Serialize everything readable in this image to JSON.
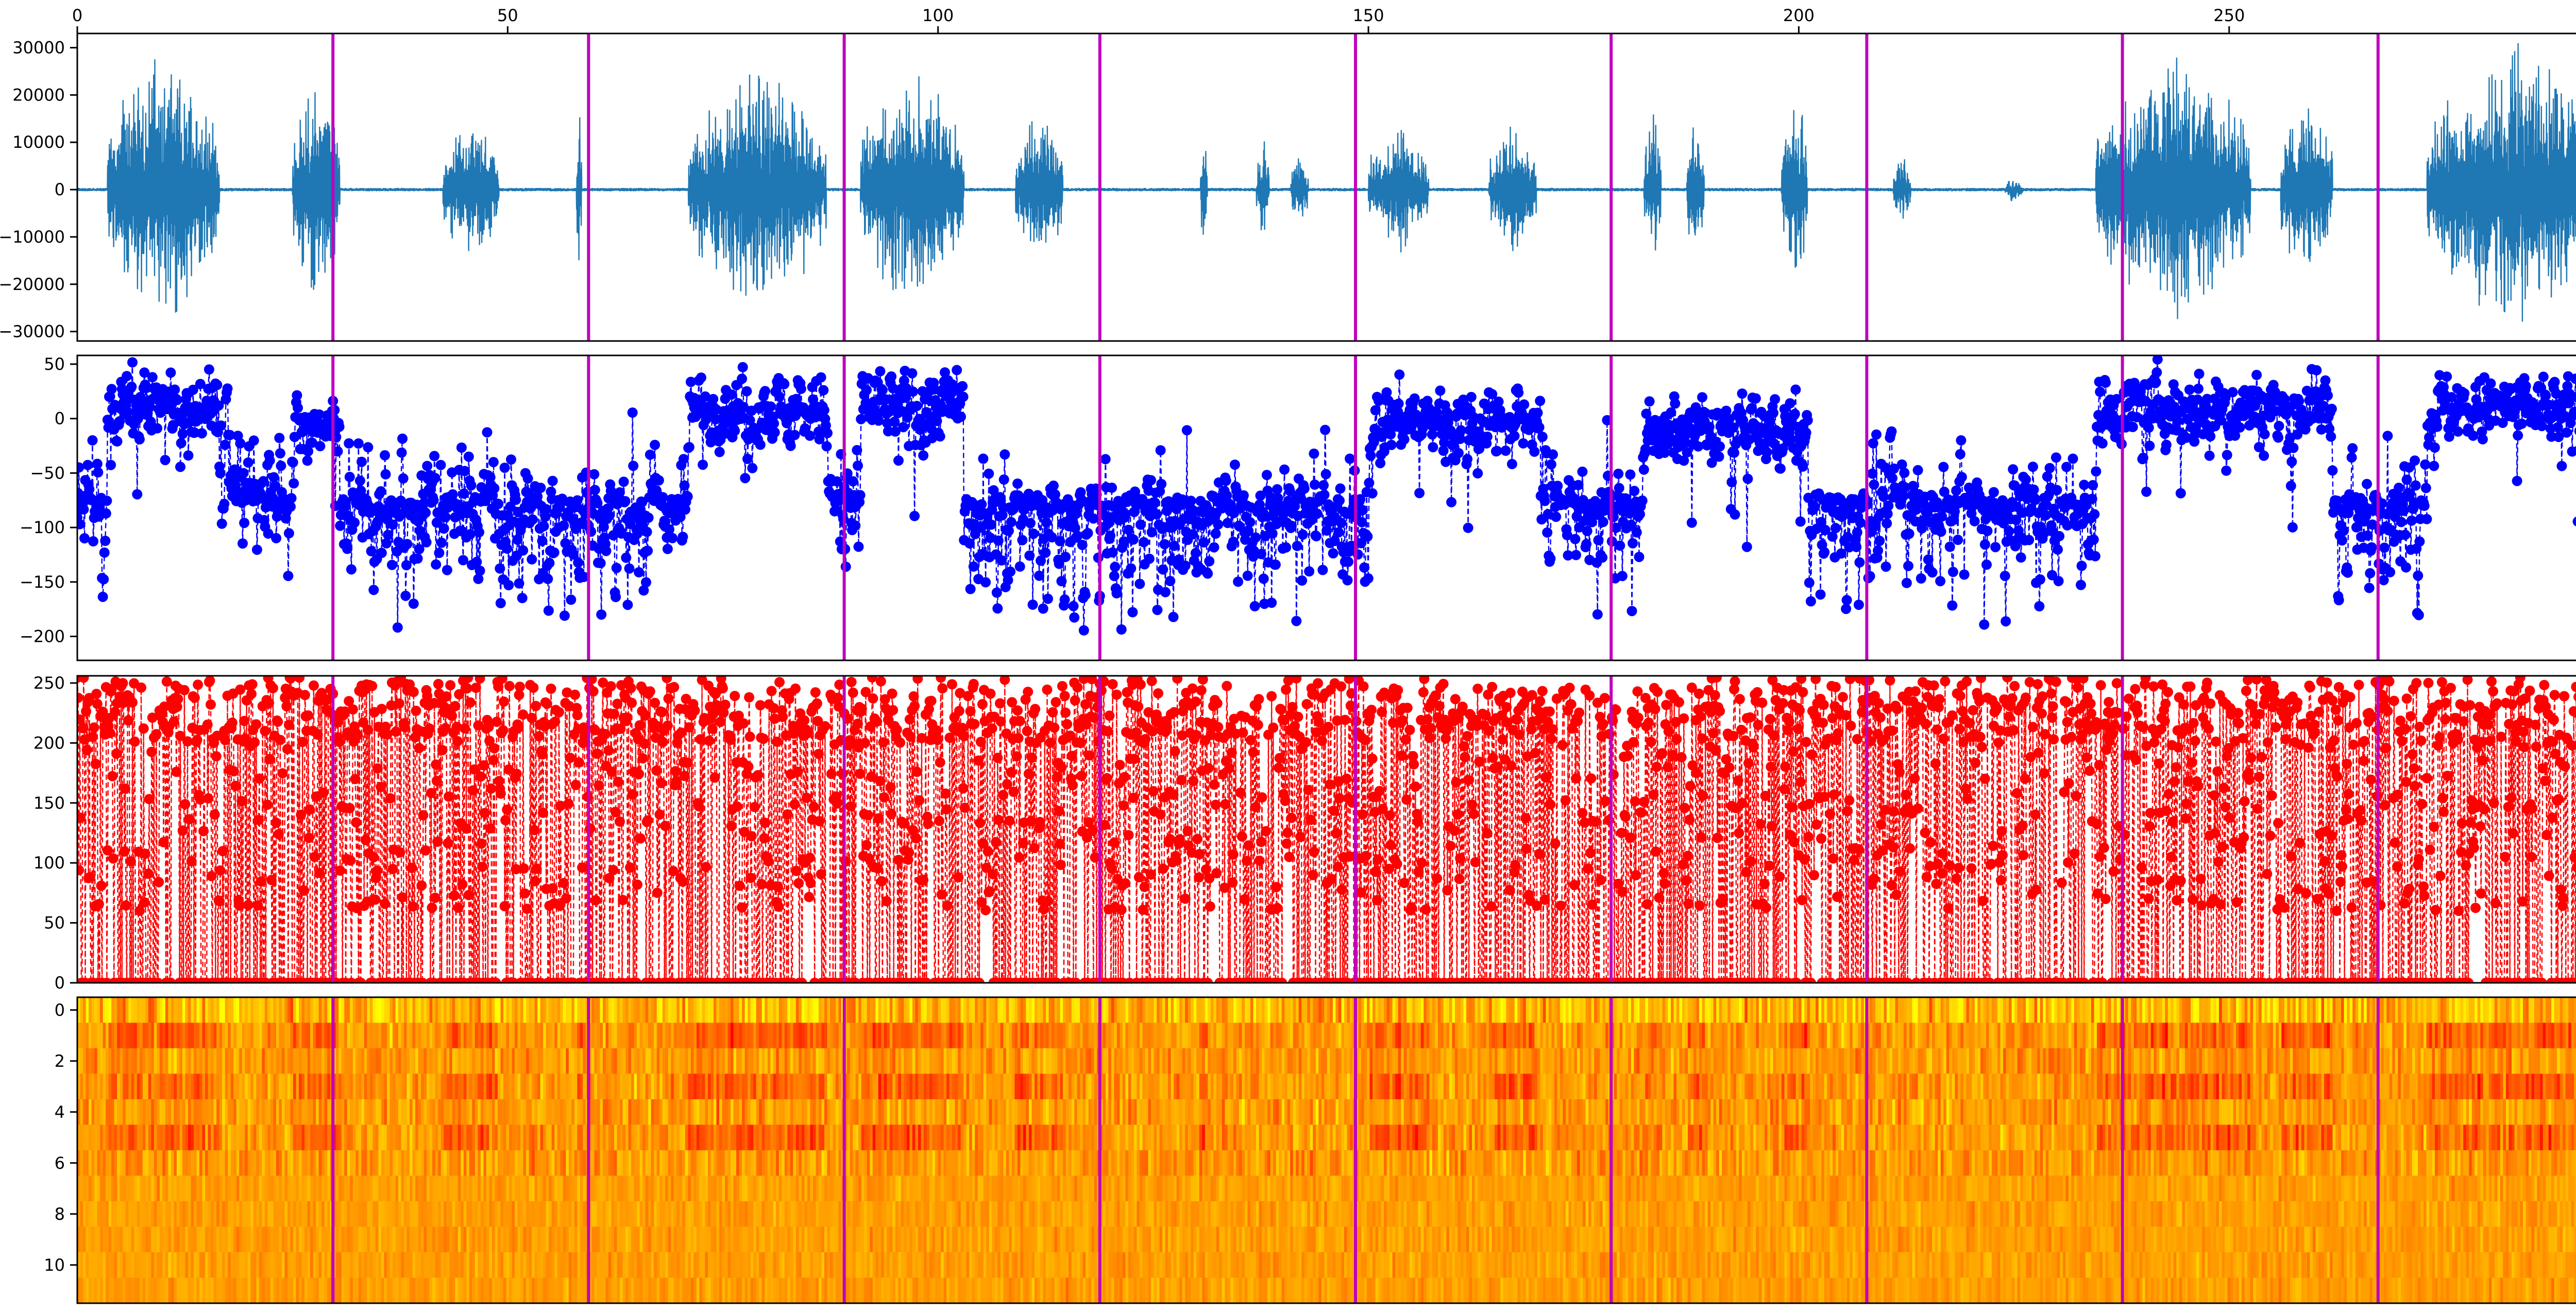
{
  "colors": {
    "waveform": "#1f77b4",
    "pitch": "#0000ff",
    "energy": "#ff0000",
    "segment_line": "#bf00bf",
    "frame": "#000000"
  },
  "chart_data": [
    {
      "id": "waveform",
      "type": "line",
      "title": "",
      "xlabel": "",
      "ylabel": "",
      "xlim": [
        0,
        297
      ],
      "ylim": [
        -32000,
        33000
      ],
      "x_ticks": [
        0,
        50,
        100,
        150,
        200,
        250
      ],
      "x_tick_labels": [
        "0",
        "50",
        "100",
        "150",
        "200",
        "250"
      ],
      "x_ticks_position": "top",
      "y_ticks": [
        30000,
        20000,
        10000,
        0,
        -10000,
        -20000,
        -30000
      ],
      "y_tick_labels": [
        "30000",
        "20000",
        "10000",
        "0",
        "−10000",
        "−20000",
        "−30000"
      ],
      "series": [
        {
          "style": "solid",
          "bursts": [
            {
              "x": [
                3.5,
                16.5
              ],
              "amp": 31000
            },
            {
              "x": [
                25,
                30.5
              ],
              "amp": 26000
            },
            {
              "x": [
                42.5,
                49
              ],
              "amp": 16500
            },
            {
              "x": [
                58,
                58.6
              ],
              "amp": 20000
            },
            {
              "x": [
                71,
                87
              ],
              "amp": 28000
            },
            {
              "x": [
                91,
                103
              ],
              "amp": 28000
            },
            {
              "x": [
                109,
                114.5
              ],
              "amp": 18000
            },
            {
              "x": [
                130.5,
                131.3
              ],
              "amp": 13000
            },
            {
              "x": [
                137,
                138.5
              ],
              "amp": 12000
            },
            {
              "x": [
                141,
                143
              ],
              "amp": 8000
            },
            {
              "x": [
                150,
                157
              ],
              "amp": 15000
            },
            {
              "x": [
                164,
                169.5
              ],
              "amp": 15000
            },
            {
              "x": [
                182,
                184
              ],
              "amp": 18000
            },
            {
              "x": [
                187,
                189
              ],
              "amp": 17000
            },
            {
              "x": [
                198,
                201
              ],
              "amp": 24000
            },
            {
              "x": [
                211,
                213
              ],
              "amp": 8000
            },
            {
              "x": [
                224,
                226
              ],
              "amp": 3000
            },
            {
              "x": [
                234.5,
                252.5
              ],
              "amp": 31000
            },
            {
              "x": [
                256,
                262
              ],
              "amp": 22000
            },
            {
              "x": [
                273,
                294
              ],
              "amp": 32000
            }
          ]
        }
      ]
    },
    {
      "id": "pitch",
      "type": "line",
      "title": "",
      "xlabel": "",
      "ylabel": "",
      "xlim": [
        0,
        297
      ],
      "ylim": [
        -222,
        58
      ],
      "y_ticks": [
        50,
        0,
        -50,
        -100,
        -150,
        -200
      ],
      "y_tick_labels": [
        "50",
        "0",
        "−50",
        "−100",
        "−150",
        "−200"
      ],
      "series": [
        {
          "style": "dashed line with circle markers",
          "levels": [
            {
              "x": [
                0,
                3.5
              ],
              "y": -95
            },
            {
              "x": [
                3.5,
                16.5
              ],
              "y": 15
            },
            {
              "x": [
                16.5,
                25
              ],
              "y": -60
            },
            {
              "x": [
                25,
                30.5
              ],
              "y": -10
            },
            {
              "x": [
                30.5,
                71
              ],
              "y": -95
            },
            {
              "x": [
                71,
                87
              ],
              "y": 10
            },
            {
              "x": [
                87,
                91
              ],
              "y": -80
            },
            {
              "x": [
                91,
                103
              ],
              "y": 15
            },
            {
              "x": [
                103,
                150
              ],
              "y": -110
            },
            {
              "x": [
                150,
                170
              ],
              "y": 0
            },
            {
              "x": [
                170,
                182
              ],
              "y": -100
            },
            {
              "x": [
                182,
                201
              ],
              "y": -10
            },
            {
              "x": [
                201,
                234.5
              ],
              "y": -100
            },
            {
              "x": [
                234.5,
                262
              ],
              "y": 10
            },
            {
              "x": [
                262,
                273
              ],
              "y": -100
            },
            {
              "x": [
                273,
                297
              ],
              "y": 10
            }
          ]
        }
      ]
    },
    {
      "id": "energy",
      "type": "line",
      "title": "",
      "xlabel": "",
      "ylabel": "",
      "xlim": [
        0,
        297
      ],
      "ylim": [
        0,
        256
      ],
      "y_ticks": [
        250,
        200,
        150,
        100,
        50,
        0
      ],
      "y_tick_labels": [
        "250",
        "200",
        "150",
        "100",
        "50",
        "0"
      ],
      "series": [
        {
          "style": "dashed line with circle markers",
          "range": [
            0,
            255
          ]
        }
      ]
    },
    {
      "id": "features",
      "type": "heatmap",
      "title": "",
      "xlabel": "",
      "ylabel": "",
      "xlim": [
        0,
        297
      ],
      "rows": 12,
      "y_ticks": [
        0,
        2,
        4,
        6,
        8,
        10
      ],
      "y_tick_labels": [
        "0",
        "2",
        "4",
        "6",
        "8",
        "10"
      ],
      "colormap": "autumn"
    }
  ],
  "segment_boundaries": [
    29.7,
    59.4,
    89.1,
    118.8,
    148.5,
    178.2,
    207.9,
    237.6,
    267.3
  ]
}
